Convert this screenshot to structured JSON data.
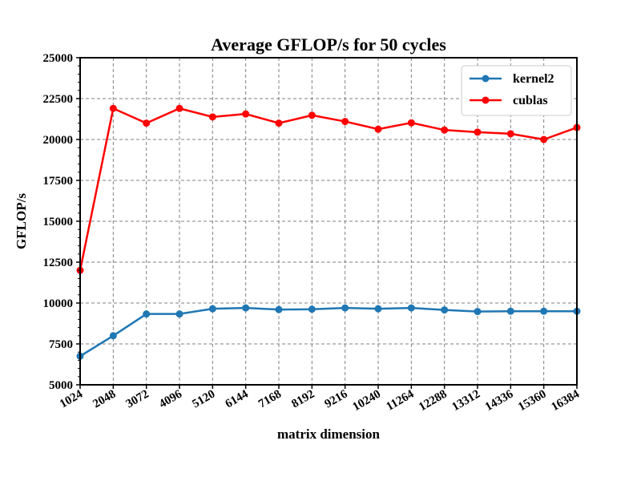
{
  "chart_data": {
    "type": "line",
    "title": "Average GFLOP/s for 50 cycles",
    "xlabel": "matrix dimension",
    "ylabel": "GFLOP/s",
    "categories": [
      "1024",
      "2048",
      "3072",
      "4096",
      "5120",
      "6144",
      "7168",
      "8192",
      "9216",
      "10240",
      "11264",
      "12288",
      "13312",
      "14336",
      "15360",
      "16384"
    ],
    "ylim": [
      5000,
      25000
    ],
    "yticks": [
      5000,
      7500,
      10000,
      12500,
      15000,
      17500,
      20000,
      22500,
      25000
    ],
    "grid": true,
    "legend_position": "top-right",
    "series": [
      {
        "name": "kernel2",
        "color": "#1f77b4",
        "values": [
          6750,
          8000,
          9330,
          9330,
          9650,
          9700,
          9600,
          9620,
          9700,
          9650,
          9700,
          9580,
          9480,
          9500,
          9500,
          9500
        ]
      },
      {
        "name": "cublas",
        "color": "#ff0000",
        "values": [
          12000,
          21900,
          21000,
          21900,
          21380,
          21560,
          21000,
          21480,
          21100,
          20630,
          21020,
          20580,
          20450,
          20350,
          20000,
          20730
        ]
      }
    ]
  }
}
